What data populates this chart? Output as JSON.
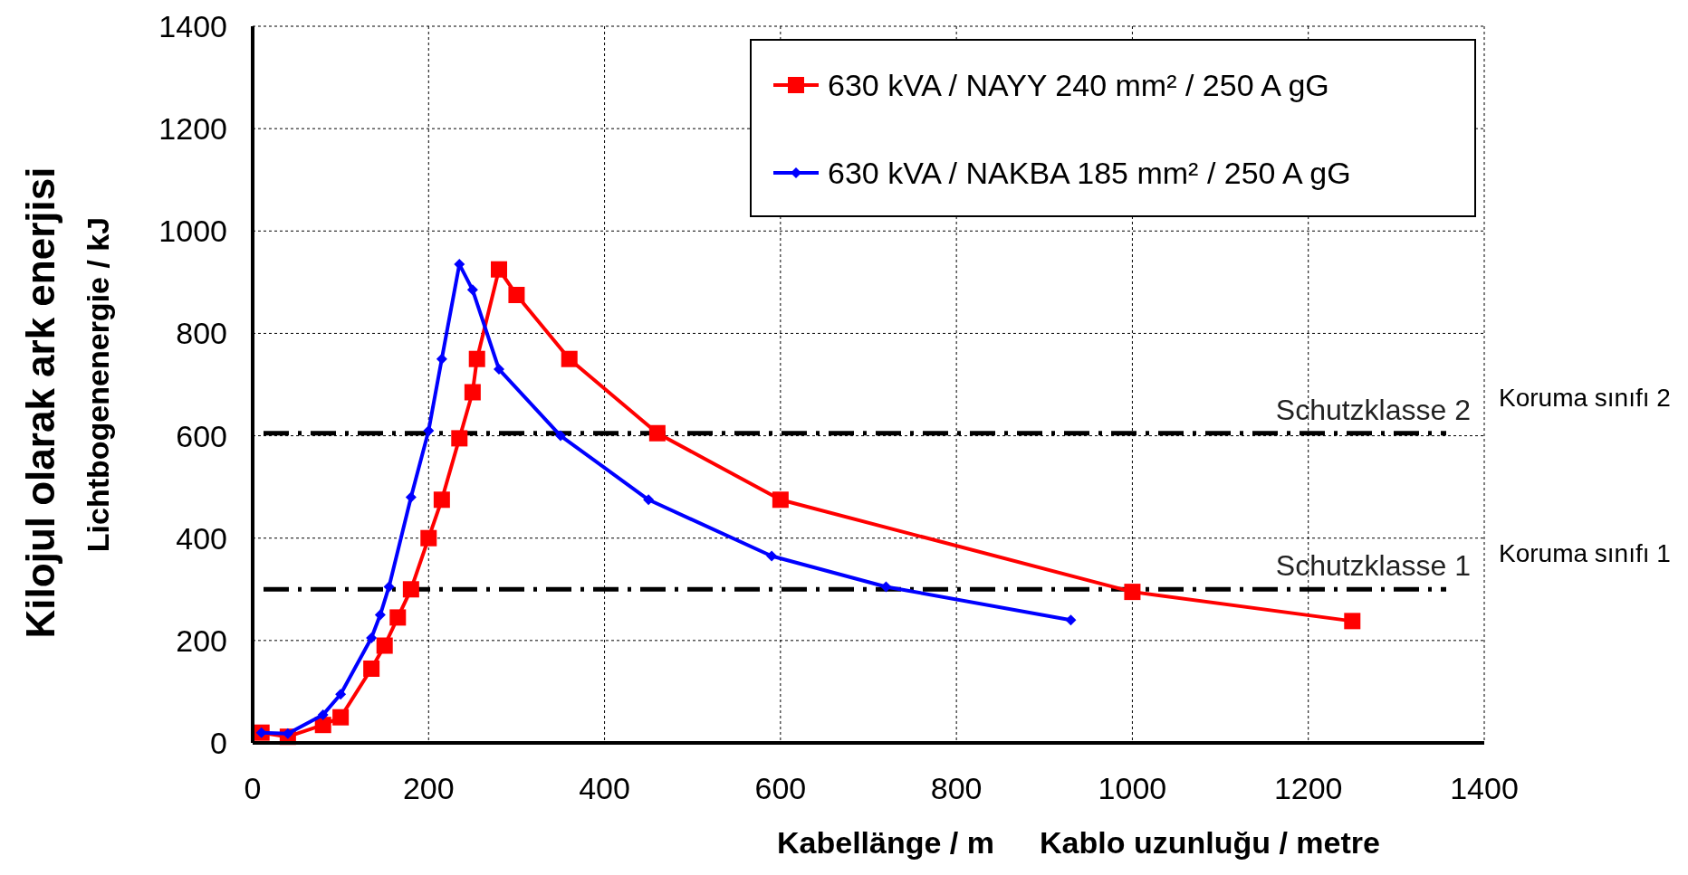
{
  "chart_data": {
    "type": "line",
    "xlabel": "Kabellänge / m",
    "ylabel": "Lichtbogenenergie / kJ",
    "xlim": [
      0,
      1400
    ],
    "xticks": [
      0,
      200,
      400,
      600,
      800,
      1000,
      1200,
      1400
    ],
    "ylim": [
      0,
      1400
    ],
    "yticks": [
      0,
      200,
      400,
      600,
      800,
      1000,
      1200,
      1400
    ],
    "grid": true,
    "legend": "top right",
    "line_style": "solid",
    "series": [
      {
        "name": "630 kVA / NAYY 240 mm² / 250 A gG",
        "color": "#ff0000",
        "marker": "square",
        "x": [
          10,
          40,
          80,
          100,
          135,
          150,
          165,
          180,
          200,
          215,
          235,
          250,
          255,
          280,
          300,
          360,
          460,
          600,
          1000,
          1250
        ],
        "values": [
          20,
          12,
          35,
          50,
          145,
          190,
          245,
          300,
          400,
          475,
          595,
          685,
          750,
          925,
          875,
          750,
          605,
          475,
          295,
          238
        ]
      },
      {
        "name": "630 kVA / NAKBA 185 mm² / 250 A gG",
        "color": "#0000ff",
        "marker": "diamond",
        "x": [
          10,
          40,
          80,
          100,
          135,
          145,
          155,
          180,
          200,
          215,
          235,
          250,
          280,
          350,
          450,
          590,
          720,
          930
        ],
        "values": [
          20,
          18,
          55,
          95,
          205,
          250,
          305,
          480,
          610,
          750,
          935,
          885,
          730,
          600,
          475,
          365,
          305,
          240
        ]
      }
    ],
    "ref_lines": [
      {
        "axis": "y",
        "value": 605,
        "label": "Schutzklasse 2",
        "color": "#000000",
        "line_style": "dashed"
      },
      {
        "axis": "y",
        "value": 300,
        "label": "Schutzklasse 1",
        "color": "#000000",
        "line_style": "dashed"
      }
    ],
    "annotations": [
      "Koruma sınıfı 2",
      "Koruma sınıfı 1",
      "Kablo uzunluğu / metre",
      "Kilojul olarak ark enerjisi"
    ]
  }
}
